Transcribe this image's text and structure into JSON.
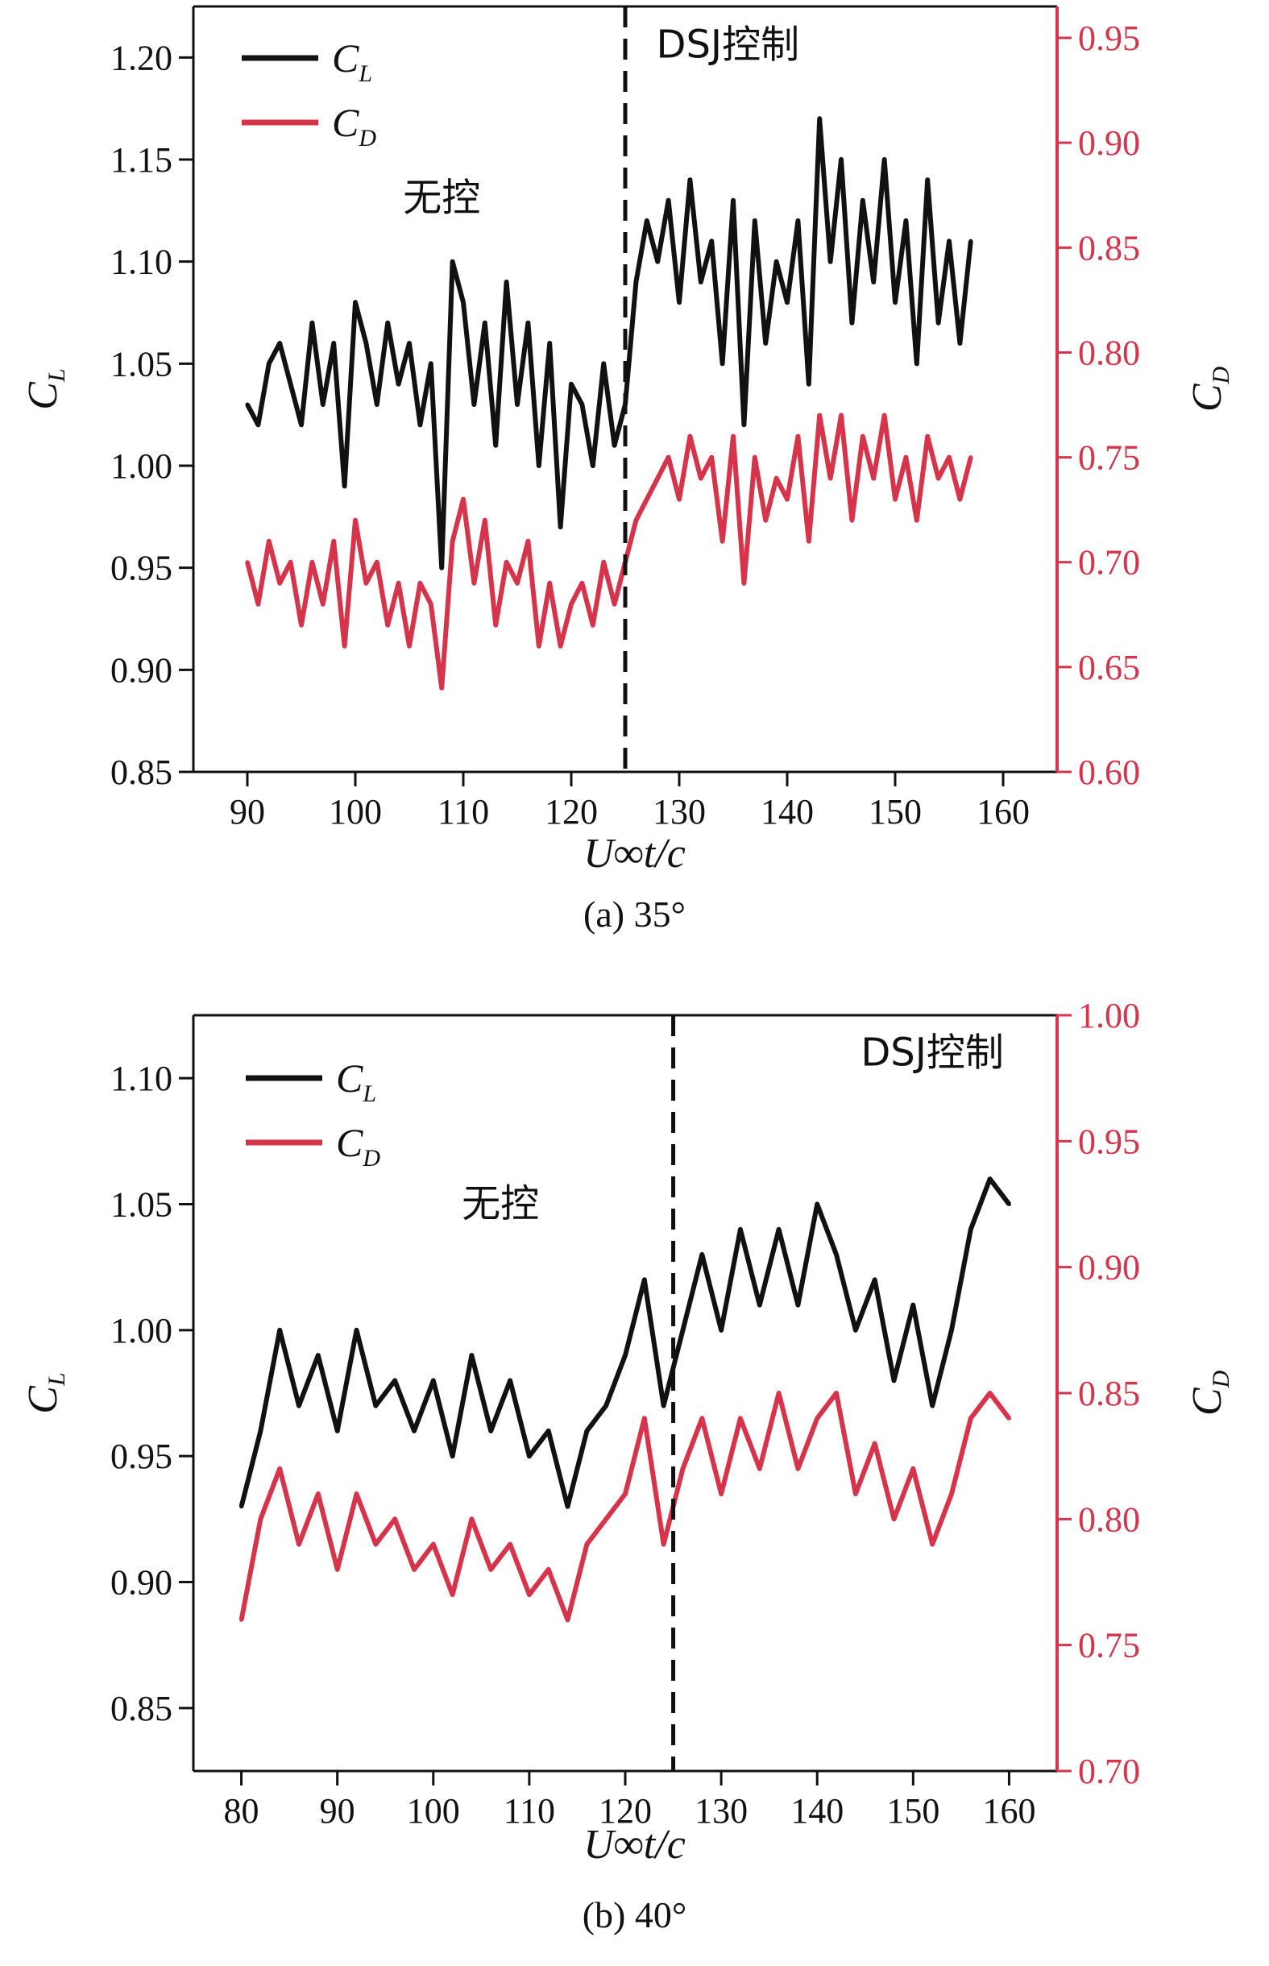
{
  "chart_data": [
    {
      "type": "line",
      "caption": "(a) 35°",
      "xlabel": "U∞t/c",
      "ylabel_left": "C",
      "ylabel_left_sub": "L",
      "ylabel_right": "C",
      "ylabel_right_sub": "D",
      "xlim": [
        85,
        165
      ],
      "xticks": [
        90,
        100,
        110,
        120,
        130,
        140,
        150,
        160
      ],
      "ylim_left": [
        0.85,
        1.225
      ],
      "yticks_left": [
        "0.85",
        "0.90",
        "0.95",
        "1.00",
        "1.05",
        "1.10",
        "1.15",
        "1.20"
      ],
      "ylim_right": [
        0.6,
        0.965
      ],
      "yticks_right": [
        "0.60",
        "0.65",
        "0.70",
        "0.75",
        "0.80",
        "0.85",
        "0.90",
        "0.95"
      ],
      "control_start_x": 125,
      "annotations": [
        {
          "text": "无控",
          "x": 108,
          "y_left": 1.125
        },
        {
          "text": "DSJ控制",
          "x": 134.5,
          "y_left": 1.2
        }
      ],
      "legend": [
        {
          "name": "C",
          "sub": "L",
          "color": "#111111"
        },
        {
          "name": "C",
          "sub": "D",
          "color": "#d6344a"
        }
      ],
      "series": [
        {
          "name": "C_L",
          "axis": "left",
          "color": "#111111",
          "x": [
            90,
            91,
            92,
            93,
            94,
            95,
            96,
            97,
            98,
            99,
            100,
            101,
            102,
            103,
            104,
            105,
            106,
            107,
            108,
            109,
            110,
            111,
            112,
            113,
            114,
            115,
            116,
            117,
            118,
            119,
            120,
            121,
            122,
            123,
            124,
            125,
            126,
            127,
            128,
            129,
            130,
            131,
            132,
            133,
            134,
            135,
            136,
            137,
            138,
            139,
            140,
            141,
            142,
            143,
            144,
            145,
            146,
            147,
            148,
            149,
            150,
            151,
            152,
            153,
            154,
            155,
            156,
            157
          ],
          "values": [
            1.03,
            1.02,
            1.05,
            1.06,
            1.04,
            1.02,
            1.07,
            1.03,
            1.06,
            0.99,
            1.08,
            1.06,
            1.03,
            1.07,
            1.04,
            1.06,
            1.02,
            1.05,
            0.95,
            1.1,
            1.08,
            1.03,
            1.07,
            1.01,
            1.09,
            1.03,
            1.07,
            1.0,
            1.06,
            0.97,
            1.04,
            1.03,
            1.0,
            1.05,
            1.01,
            1.03,
            1.09,
            1.12,
            1.1,
            1.13,
            1.08,
            1.14,
            1.09,
            1.11,
            1.05,
            1.13,
            1.02,
            1.12,
            1.06,
            1.1,
            1.08,
            1.12,
            1.04,
            1.17,
            1.1,
            1.15,
            1.07,
            1.13,
            1.09,
            1.15,
            1.08,
            1.12,
            1.05,
            1.14,
            1.07,
            1.11,
            1.06,
            1.11
          ]
        },
        {
          "name": "C_D",
          "axis": "right",
          "color": "#d6344a",
          "x": [
            90,
            91,
            92,
            93,
            94,
            95,
            96,
            97,
            98,
            99,
            100,
            101,
            102,
            103,
            104,
            105,
            106,
            107,
            108,
            109,
            110,
            111,
            112,
            113,
            114,
            115,
            116,
            117,
            118,
            119,
            120,
            121,
            122,
            123,
            124,
            125,
            126,
            127,
            128,
            129,
            130,
            131,
            132,
            133,
            134,
            135,
            136,
            137,
            138,
            139,
            140,
            141,
            142,
            143,
            144,
            145,
            146,
            147,
            148,
            149,
            150,
            151,
            152,
            153,
            154,
            155,
            156,
            157
          ],
          "values": [
            0.7,
            0.68,
            0.71,
            0.69,
            0.7,
            0.67,
            0.7,
            0.68,
            0.71,
            0.66,
            0.72,
            0.69,
            0.7,
            0.67,
            0.69,
            0.66,
            0.69,
            0.68,
            0.64,
            0.71,
            0.73,
            0.69,
            0.72,
            0.67,
            0.7,
            0.69,
            0.71,
            0.66,
            0.69,
            0.66,
            0.68,
            0.69,
            0.67,
            0.7,
            0.68,
            0.7,
            0.72,
            0.73,
            0.74,
            0.75,
            0.73,
            0.76,
            0.74,
            0.75,
            0.71,
            0.76,
            0.69,
            0.75,
            0.72,
            0.74,
            0.73,
            0.76,
            0.71,
            0.77,
            0.74,
            0.77,
            0.72,
            0.76,
            0.74,
            0.77,
            0.73,
            0.75,
            0.72,
            0.76,
            0.74,
            0.75,
            0.73,
            0.75
          ]
        }
      ]
    },
    {
      "type": "line",
      "caption": "(b) 40°",
      "xlabel": "U∞t/c",
      "ylabel_left": "C",
      "ylabel_left_sub": "L",
      "ylabel_right": "C",
      "ylabel_right_sub": "D",
      "xlim": [
        75,
        165
      ],
      "xticks": [
        80,
        90,
        100,
        110,
        120,
        130,
        140,
        150,
        160
      ],
      "ylim_left": [
        0.825,
        1.125
      ],
      "yticks_left": [
        "0.85",
        "0.90",
        "0.95",
        "1.00",
        "1.05",
        "1.10"
      ],
      "ylim_right": [
        0.7,
        1.0
      ],
      "yticks_right": [
        "0.70",
        "0.75",
        "0.80",
        "0.85",
        "0.90",
        "0.95",
        "1.00"
      ],
      "control_start_x": 125,
      "annotations": [
        {
          "text": "无控",
          "x": 107,
          "y_left": 1.045
        },
        {
          "text": "DSJ控制",
          "x": 152,
          "y_left": 1.105
        }
      ],
      "legend": [
        {
          "name": "C",
          "sub": "L",
          "color": "#111111"
        },
        {
          "name": "C",
          "sub": "D",
          "color": "#d6344a"
        }
      ],
      "series": [
        {
          "name": "C_L",
          "axis": "left",
          "color": "#111111",
          "x": [
            80,
            82,
            84,
            86,
            88,
            90,
            92,
            94,
            96,
            98,
            100,
            102,
            104,
            106,
            108,
            110,
            112,
            114,
            116,
            118,
            120,
            122,
            124,
            126,
            128,
            130,
            132,
            134,
            136,
            138,
            140,
            142,
            144,
            146,
            148,
            150,
            152,
            154,
            156,
            158,
            160
          ],
          "values": [
            0.93,
            0.96,
            1.0,
            0.97,
            0.99,
            0.96,
            1.0,
            0.97,
            0.98,
            0.96,
            0.98,
            0.95,
            0.99,
            0.96,
            0.98,
            0.95,
            0.96,
            0.93,
            0.96,
            0.97,
            0.99,
            1.02,
            0.97,
            1.0,
            1.03,
            1.0,
            1.04,
            1.01,
            1.04,
            1.01,
            1.05,
            1.03,
            1.0,
            1.02,
            0.98,
            1.01,
            0.97,
            1.0,
            1.04,
            1.06,
            1.05
          ]
        },
        {
          "name": "C_D",
          "axis": "right",
          "color": "#d6344a",
          "x": [
            80,
            82,
            84,
            86,
            88,
            90,
            92,
            94,
            96,
            98,
            100,
            102,
            104,
            106,
            108,
            110,
            112,
            114,
            116,
            118,
            120,
            122,
            124,
            126,
            128,
            130,
            132,
            134,
            136,
            138,
            140,
            142,
            144,
            146,
            148,
            150,
            152,
            154,
            156,
            158,
            160
          ],
          "values": [
            0.76,
            0.8,
            0.82,
            0.79,
            0.81,
            0.78,
            0.81,
            0.79,
            0.8,
            0.78,
            0.79,
            0.77,
            0.8,
            0.78,
            0.79,
            0.77,
            0.78,
            0.76,
            0.79,
            0.8,
            0.81,
            0.84,
            0.79,
            0.82,
            0.84,
            0.81,
            0.84,
            0.82,
            0.85,
            0.82,
            0.84,
            0.85,
            0.81,
            0.83,
            0.8,
            0.82,
            0.79,
            0.81,
            0.84,
            0.85,
            0.84
          ]
        }
      ]
    }
  ]
}
